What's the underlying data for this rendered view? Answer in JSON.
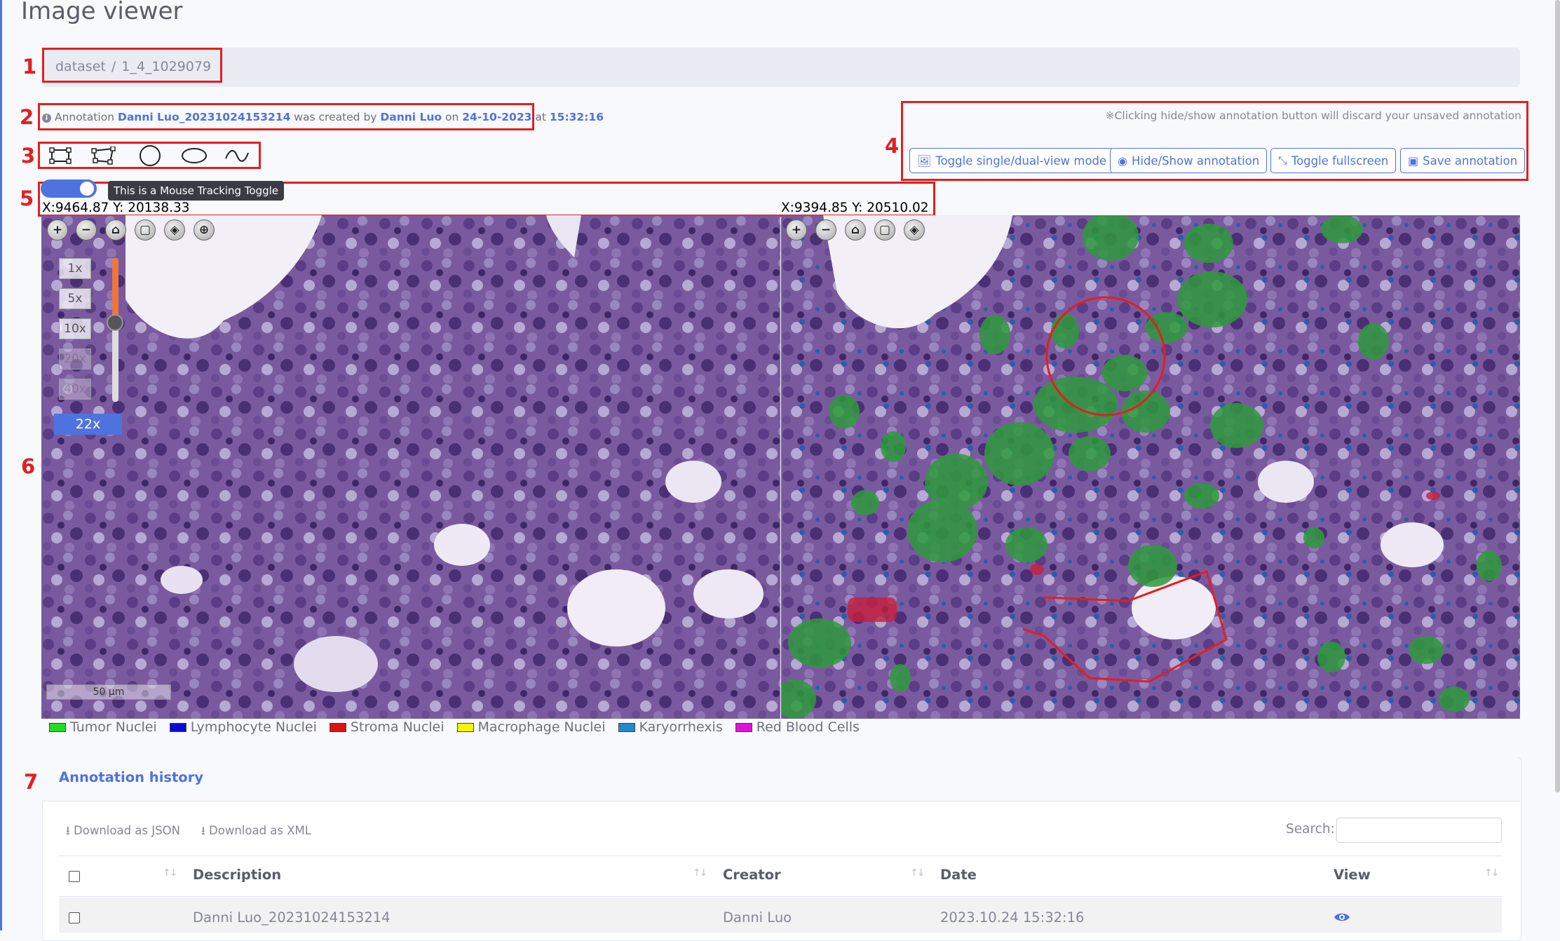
{
  "page": {
    "title": "Image viewer"
  },
  "breadcrumb": {
    "items": [
      "dataset",
      "1_4_1029079"
    ],
    "separator": "/"
  },
  "annotation_info": {
    "prefix": "Annotation",
    "name": "Danni Luo_20231024153214",
    "created_by_text": "was created by",
    "creator": "Danni Luo",
    "on_text": "on",
    "date": "24-10-2023",
    "at_text": "at",
    "time": "15:32:16"
  },
  "markers": [
    "1",
    "2",
    "3",
    "4",
    "5",
    "6",
    "7"
  ],
  "tools": [
    {
      "name": "rectangle-tool-icon"
    },
    {
      "name": "polygon-tool-icon"
    },
    {
      "name": "circle-tool-icon"
    },
    {
      "name": "ellipse-tool-icon"
    },
    {
      "name": "freehand-tool-icon"
    }
  ],
  "toolbar": {
    "note": "※Clicking hide/show annotation button will discard your unsaved annotation",
    "buttons": [
      {
        "label": "Toggle single/dual-view mode",
        "icon": "image-icon"
      },
      {
        "label": "Hide/Show annotation",
        "icon": "eye-icon"
      },
      {
        "label": "Toggle fullscreen",
        "icon": "expand-icon"
      },
      {
        "label": "Save annotation",
        "icon": "save-icon"
      }
    ]
  },
  "mouse_tracking": {
    "enabled": true,
    "tooltip": "This is a Mouse Tracking Toggle"
  },
  "coords": {
    "left": "X:9464.87 Y: 20138.33",
    "right": "X:9394.85 Y: 20510.02"
  },
  "viewer": {
    "zoom_levels": [
      "1x",
      "5x",
      "10x",
      "20x",
      "40x"
    ],
    "current_zoom": "22x",
    "zoom_fraction": 0.55,
    "scale_bar": "50 μm"
  },
  "legend": [
    {
      "label": "Tumor Nuclei",
      "color": "#22dd22"
    },
    {
      "label": "Lymphocyte Nuclei",
      "color": "#0a0ad8"
    },
    {
      "label": "Stroma Nuclei",
      "color": "#e01010"
    },
    {
      "label": "Macrophage Nuclei",
      "color": "#f5f500"
    },
    {
      "label": "Karyorrhexis",
      "color": "#1e8bd0"
    },
    {
      "label": "Red Blood Cells",
      "color": "#e010e0"
    }
  ],
  "history": {
    "title": "Annotation history",
    "download_json": "Download as JSON",
    "download_xml": "Download as XML",
    "search_label": "Search:",
    "search_value": "",
    "columns": [
      "Description",
      "Creator",
      "Date",
      "View"
    ],
    "rows": [
      {
        "description": "Danni Luo_20231024153214",
        "creator": "Danni Luo",
        "date": "2023.10.24 15:32:16"
      }
    ]
  },
  "colors": {
    "accent": "#4e73df",
    "highlight_box": "#e02020"
  }
}
